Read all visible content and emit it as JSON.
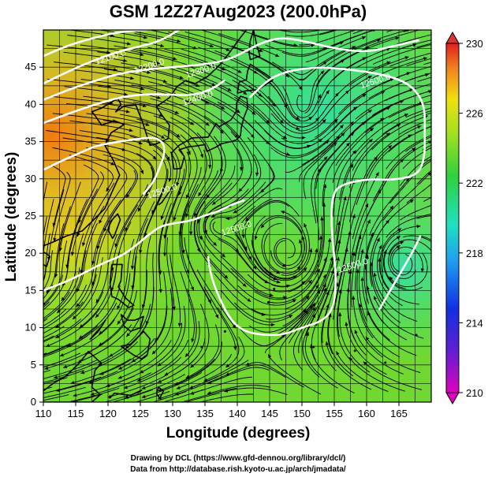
{
  "title": "GSM 12Z27Aug2023 (200.0hPa)",
  "xlabel": "Longitude (degrees)",
  "ylabel": "Latitude  (degrees)",
  "x_ticks": [
    "110",
    "115",
    "120",
    "125",
    "130",
    "135",
    "140",
    "145",
    "150",
    "155",
    "160",
    "165"
  ],
  "x_tick_values": [
    110,
    115,
    120,
    125,
    130,
    135,
    140,
    145,
    150,
    155,
    160,
    165
  ],
  "y_ticks": [
    "0",
    "5",
    "10",
    "15",
    "20",
    "25",
    "30",
    "35",
    "40",
    "45"
  ],
  "y_tick_values": [
    0,
    5,
    10,
    15,
    20,
    25,
    30,
    35,
    40,
    45
  ],
  "lon_range": [
    110,
    170
  ],
  "lat_range": [
    0,
    50
  ],
  "colorbar": {
    "labels": [
      "230",
      "226",
      "222",
      "218",
      "214",
      "210"
    ],
    "values": [
      230,
      226,
      222,
      218,
      214,
      210
    ]
  },
  "contour_labels": [
    {
      "text": "12100.0",
      "lon": 120.5,
      "lat": 46.0
    },
    {
      "text": "12200.0",
      "lon": 126.5,
      "lat": 44.8
    },
    {
      "text": "12300.0",
      "lon": 134.5,
      "lat": 44.2
    },
    {
      "text": "12400.0",
      "lon": 134.0,
      "lat": 40.5
    },
    {
      "text": "12500.0",
      "lon": 161.5,
      "lat": 42.8
    },
    {
      "text": "12500.0",
      "lon": 128.5,
      "lat": 28.0
    },
    {
      "text": "12500.0",
      "lon": 140.0,
      "lat": 23.0
    },
    {
      "text": "12500.0",
      "lon": 158.0,
      "lat": 18.0
    }
  ],
  "credits": [
    "Drawing by DCL (https://www.gfd-dennou.org/library/dcl/)",
    "Data from http://database.rish.kyoto-u.ac.jp/arch/jmadata/"
  ]
}
